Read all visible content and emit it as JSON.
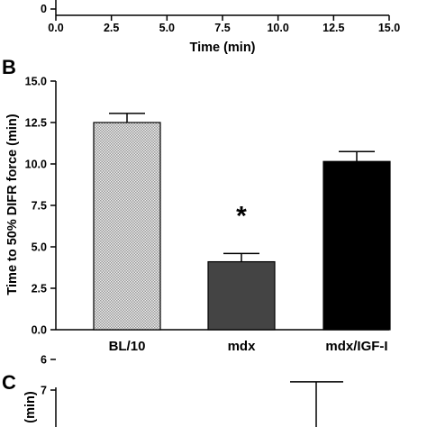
{
  "chart_data": [
    {
      "panel": "",
      "type": "line",
      "xlabel": "Time (min)",
      "xlim": [
        0,
        15
      ],
      "x_ticks": [
        "0.0",
        "2.5",
        "5.0",
        "7.5",
        "10.0",
        "12.5",
        "15.0"
      ],
      "y_ticks_visible": [
        "0"
      ],
      "series": []
    },
    {
      "panel": "B",
      "type": "bar",
      "categories": [
        "BL/10",
        "mdx",
        "mdx/IGF-I"
      ],
      "values": [
        12.5,
        4.1,
        10.15
      ],
      "errors": [
        0.55,
        0.5,
        0.6
      ],
      "ylabel": "Time to 50% DIFR force (min)",
      "ylim": [
        0,
        15
      ],
      "y_ticks": [
        "0.0",
        "2.5",
        "5.0",
        "7.5",
        "10.0",
        "12.5",
        "15.0"
      ],
      "annotation": "*",
      "annotation_category": "mdx",
      "bar_colors": [
        "#d4d4d4",
        "#444444",
        "#000000"
      ]
    },
    {
      "panel": "C",
      "type": "bar",
      "ylabel": "(min)",
      "y_ticks_visible": [
        "7",
        "6"
      ],
      "ylim_visible": [
        6,
        7
      ],
      "values": [],
      "error_cap_top": 6.73
    }
  ]
}
